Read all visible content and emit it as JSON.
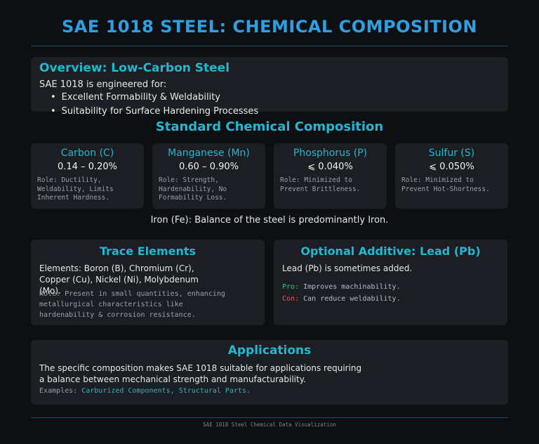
{
  "title": "SAE 1018 STEEL: CHEMICAL COMPOSITION",
  "overview": {
    "heading": "Overview: Low-Carbon Steel",
    "intro": "SAE 1018 is engineered for:",
    "bullets": [
      "Excellent Formability & Weldability",
      "Suitability for Surface Hardening Processes"
    ]
  },
  "composition": {
    "heading": "Standard Chemical Composition",
    "elements": [
      {
        "name": "Carbon (C)",
        "range": "0.14 – 0.20%",
        "role": "Role: Ductility, Weldability, Limits Inherent Hardness."
      },
      {
        "name": "Manganese (Mn)",
        "range": "0.60 – 0.90%",
        "role": "Role: Strength, Hardenability, No Formability Loss."
      },
      {
        "name": "Phosphorus (P)",
        "range": "⩽ 0.040%",
        "role": "Role: Minimized to Prevent Brittleness."
      },
      {
        "name": "Sulfur (S)",
        "range": "⩽ 0.050%",
        "role": "Role: Minimized to Prevent Hot-Shortness."
      }
    ],
    "iron": "Iron (Fe): Balance of the steel is predominantly Iron."
  },
  "trace": {
    "heading": "Trace Elements",
    "elements": "Elements: Boron (B), Chromium (Cr), Copper (Cu), Nickel (Ni), Molybdenum (Mo).",
    "role": "Role: Present in small quantities, enhancing metallurgical characteristics like hardenability & corrosion resistance."
  },
  "lead": {
    "heading": "Optional Additive: Lead (Pb)",
    "desc": "Lead (Pb) is sometimes added.",
    "pro_label": "Pro:",
    "pro_text": "Improves machinability.",
    "con_label": "Con:",
    "con_text": "Can reduce weldability."
  },
  "applications": {
    "heading": "Applications",
    "desc": "The specific composition makes SAE 1018 suitable for applications requiring a balance between mechanical strength and manufacturability.",
    "examples_label": "Examples:",
    "example_1": "Carburized Components,",
    "example_2": "Structural Parts",
    "examples_end": "."
  },
  "footer": "SAE 1018 Steel Chemical Data Visualization",
  "colors": {
    "title": "#2e9fe0",
    "accent": "#22b8cf",
    "pro": "#2ecc71",
    "con": "#ff5252",
    "background": "#0e0f13",
    "panel": "#1c1e23"
  }
}
